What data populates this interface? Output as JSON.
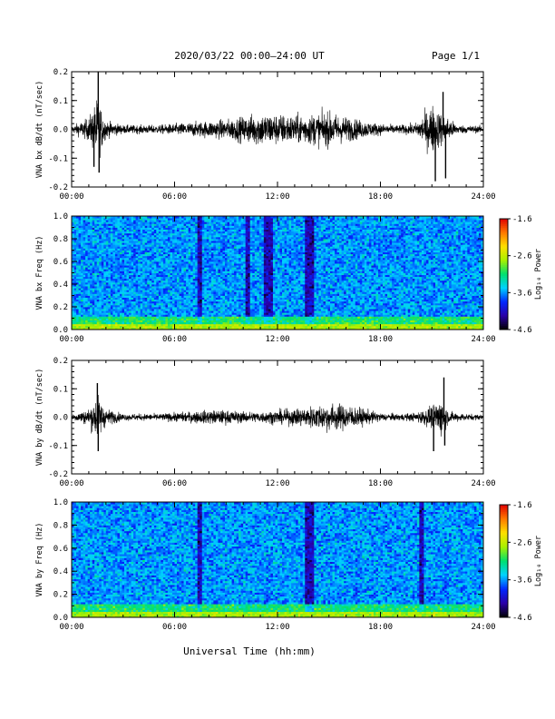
{
  "header": {
    "title": "2020/03/22  00:00–24:00 UT",
    "page": "Page 1/1"
  },
  "footer": {
    "xlabel": "Universal Time (hh:mm)"
  },
  "colorbar": {
    "label": "Log₁₀ Power",
    "ticks": [
      "-1.6",
      "-2.6",
      "-3.6",
      "-4.6"
    ],
    "range": [
      -4.6,
      -1.6
    ],
    "colors": [
      "#000000",
      "#2a00a8",
      "#0028ff",
      "#00d2ff",
      "#00e06e",
      "#a8f000",
      "#ffe000",
      "#ff7800",
      "#e00000"
    ]
  },
  "chart_data": [
    {
      "type": "line",
      "id": "bx-dbdt",
      "ylabel": "VNA bx dB/dt (nT/sec)",
      "xlabel": "",
      "x_ticks": [
        "00:00",
        "06:00",
        "12:00",
        "18:00",
        "24:00"
      ],
      "y_ticks": [
        "0.2",
        "0.1",
        "0.0",
        "-0.1",
        "-0.2"
      ],
      "xlim_hours": [
        0,
        24
      ],
      "ylim": [
        -0.2,
        0.2
      ],
      "amplitude_envelope_hours": [
        0,
        1,
        1.5,
        1.7,
        2,
        3,
        5,
        7,
        8,
        9,
        10,
        11,
        12,
        13,
        14,
        15,
        16,
        17,
        18,
        19,
        20,
        20.5,
        21,
        21.5,
        22,
        22.5,
        24
      ],
      "amplitude_envelope_values": [
        0.012,
        0.04,
        0.11,
        0.08,
        0.03,
        0.015,
        0.015,
        0.025,
        0.03,
        0.035,
        0.045,
        0.06,
        0.055,
        0.05,
        0.055,
        0.06,
        0.045,
        0.03,
        0.02,
        0.015,
        0.02,
        0.05,
        0.09,
        0.06,
        0.04,
        0.015,
        0.012
      ],
      "spikes": [
        {
          "t": 1.55,
          "value": 0.2
        },
        {
          "t": 1.6,
          "value": -0.15
        },
        {
          "t": 1.3,
          "value": -0.13
        },
        {
          "t": 21.2,
          "value": -0.18
        },
        {
          "t": 21.65,
          "value": 0.13
        },
        {
          "t": 21.8,
          "value": -0.17
        }
      ]
    },
    {
      "type": "heatmap",
      "id": "bx-spec",
      "ylabel": "VNA bx Freq (Hz)",
      "x_ticks": [
        "00:00",
        "06:00",
        "12:00",
        "18:00",
        "24:00"
      ],
      "y_ticks": [
        "1.0",
        "0.8",
        "0.6",
        "0.4",
        "0.2",
        "0.0"
      ],
      "xlim_hours": [
        0,
        24
      ],
      "ylim": [
        0,
        1.0
      ],
      "z_range": [
        -4.6,
        -1.6
      ],
      "dark_bands_hours": [
        7.5,
        10.3,
        11.4,
        11.6,
        13.7,
        14.0
      ],
      "low_freq_power_band_hz": 0.05
    },
    {
      "type": "line",
      "id": "by-dbdt",
      "ylabel": "VNA by dB/dt (nT/sec)",
      "xlabel": "",
      "x_ticks": [
        "00:00",
        "06:00",
        "12:00",
        "18:00",
        "24:00"
      ],
      "y_ticks": [
        "0.2",
        "0.1",
        "0.0",
        "-0.1",
        "-0.2"
      ],
      "xlim_hours": [
        0,
        24
      ],
      "ylim": [
        -0.2,
        0.2
      ],
      "amplitude_envelope_hours": [
        0,
        1,
        1.5,
        2,
        3,
        5,
        7,
        8,
        9,
        10,
        11,
        12,
        13,
        14,
        15,
        16,
        17,
        18,
        19,
        20,
        21,
        21.5,
        22,
        23,
        24
      ],
      "amplitude_envelope_values": [
        0.01,
        0.03,
        0.08,
        0.03,
        0.012,
        0.012,
        0.02,
        0.025,
        0.025,
        0.02,
        0.02,
        0.025,
        0.03,
        0.04,
        0.05,
        0.045,
        0.03,
        0.015,
        0.012,
        0.015,
        0.04,
        0.07,
        0.02,
        0.012,
        0.01
      ],
      "spikes": [
        {
          "t": 1.5,
          "value": 0.12
        },
        {
          "t": 1.55,
          "value": -0.12
        },
        {
          "t": 21.1,
          "value": -0.12
        },
        {
          "t": 21.7,
          "value": 0.14
        },
        {
          "t": 21.75,
          "value": -0.1
        }
      ]
    },
    {
      "type": "heatmap",
      "id": "by-spec",
      "ylabel": "VNA by Freq (Hz)",
      "x_ticks": [
        "00:00",
        "06:00",
        "12:00",
        "18:00",
        "24:00"
      ],
      "y_ticks": [
        "1.0",
        "0.8",
        "0.6",
        "0.4",
        "0.2",
        "0.0"
      ],
      "xlim_hours": [
        0,
        24
      ],
      "ylim": [
        0,
        1.0
      ],
      "z_range": [
        -4.6,
        -1.6
      ],
      "dark_bands_hours": [
        7.5,
        13.7,
        14.0,
        20.4
      ],
      "low_freq_power_band_hz": 0.05
    }
  ]
}
